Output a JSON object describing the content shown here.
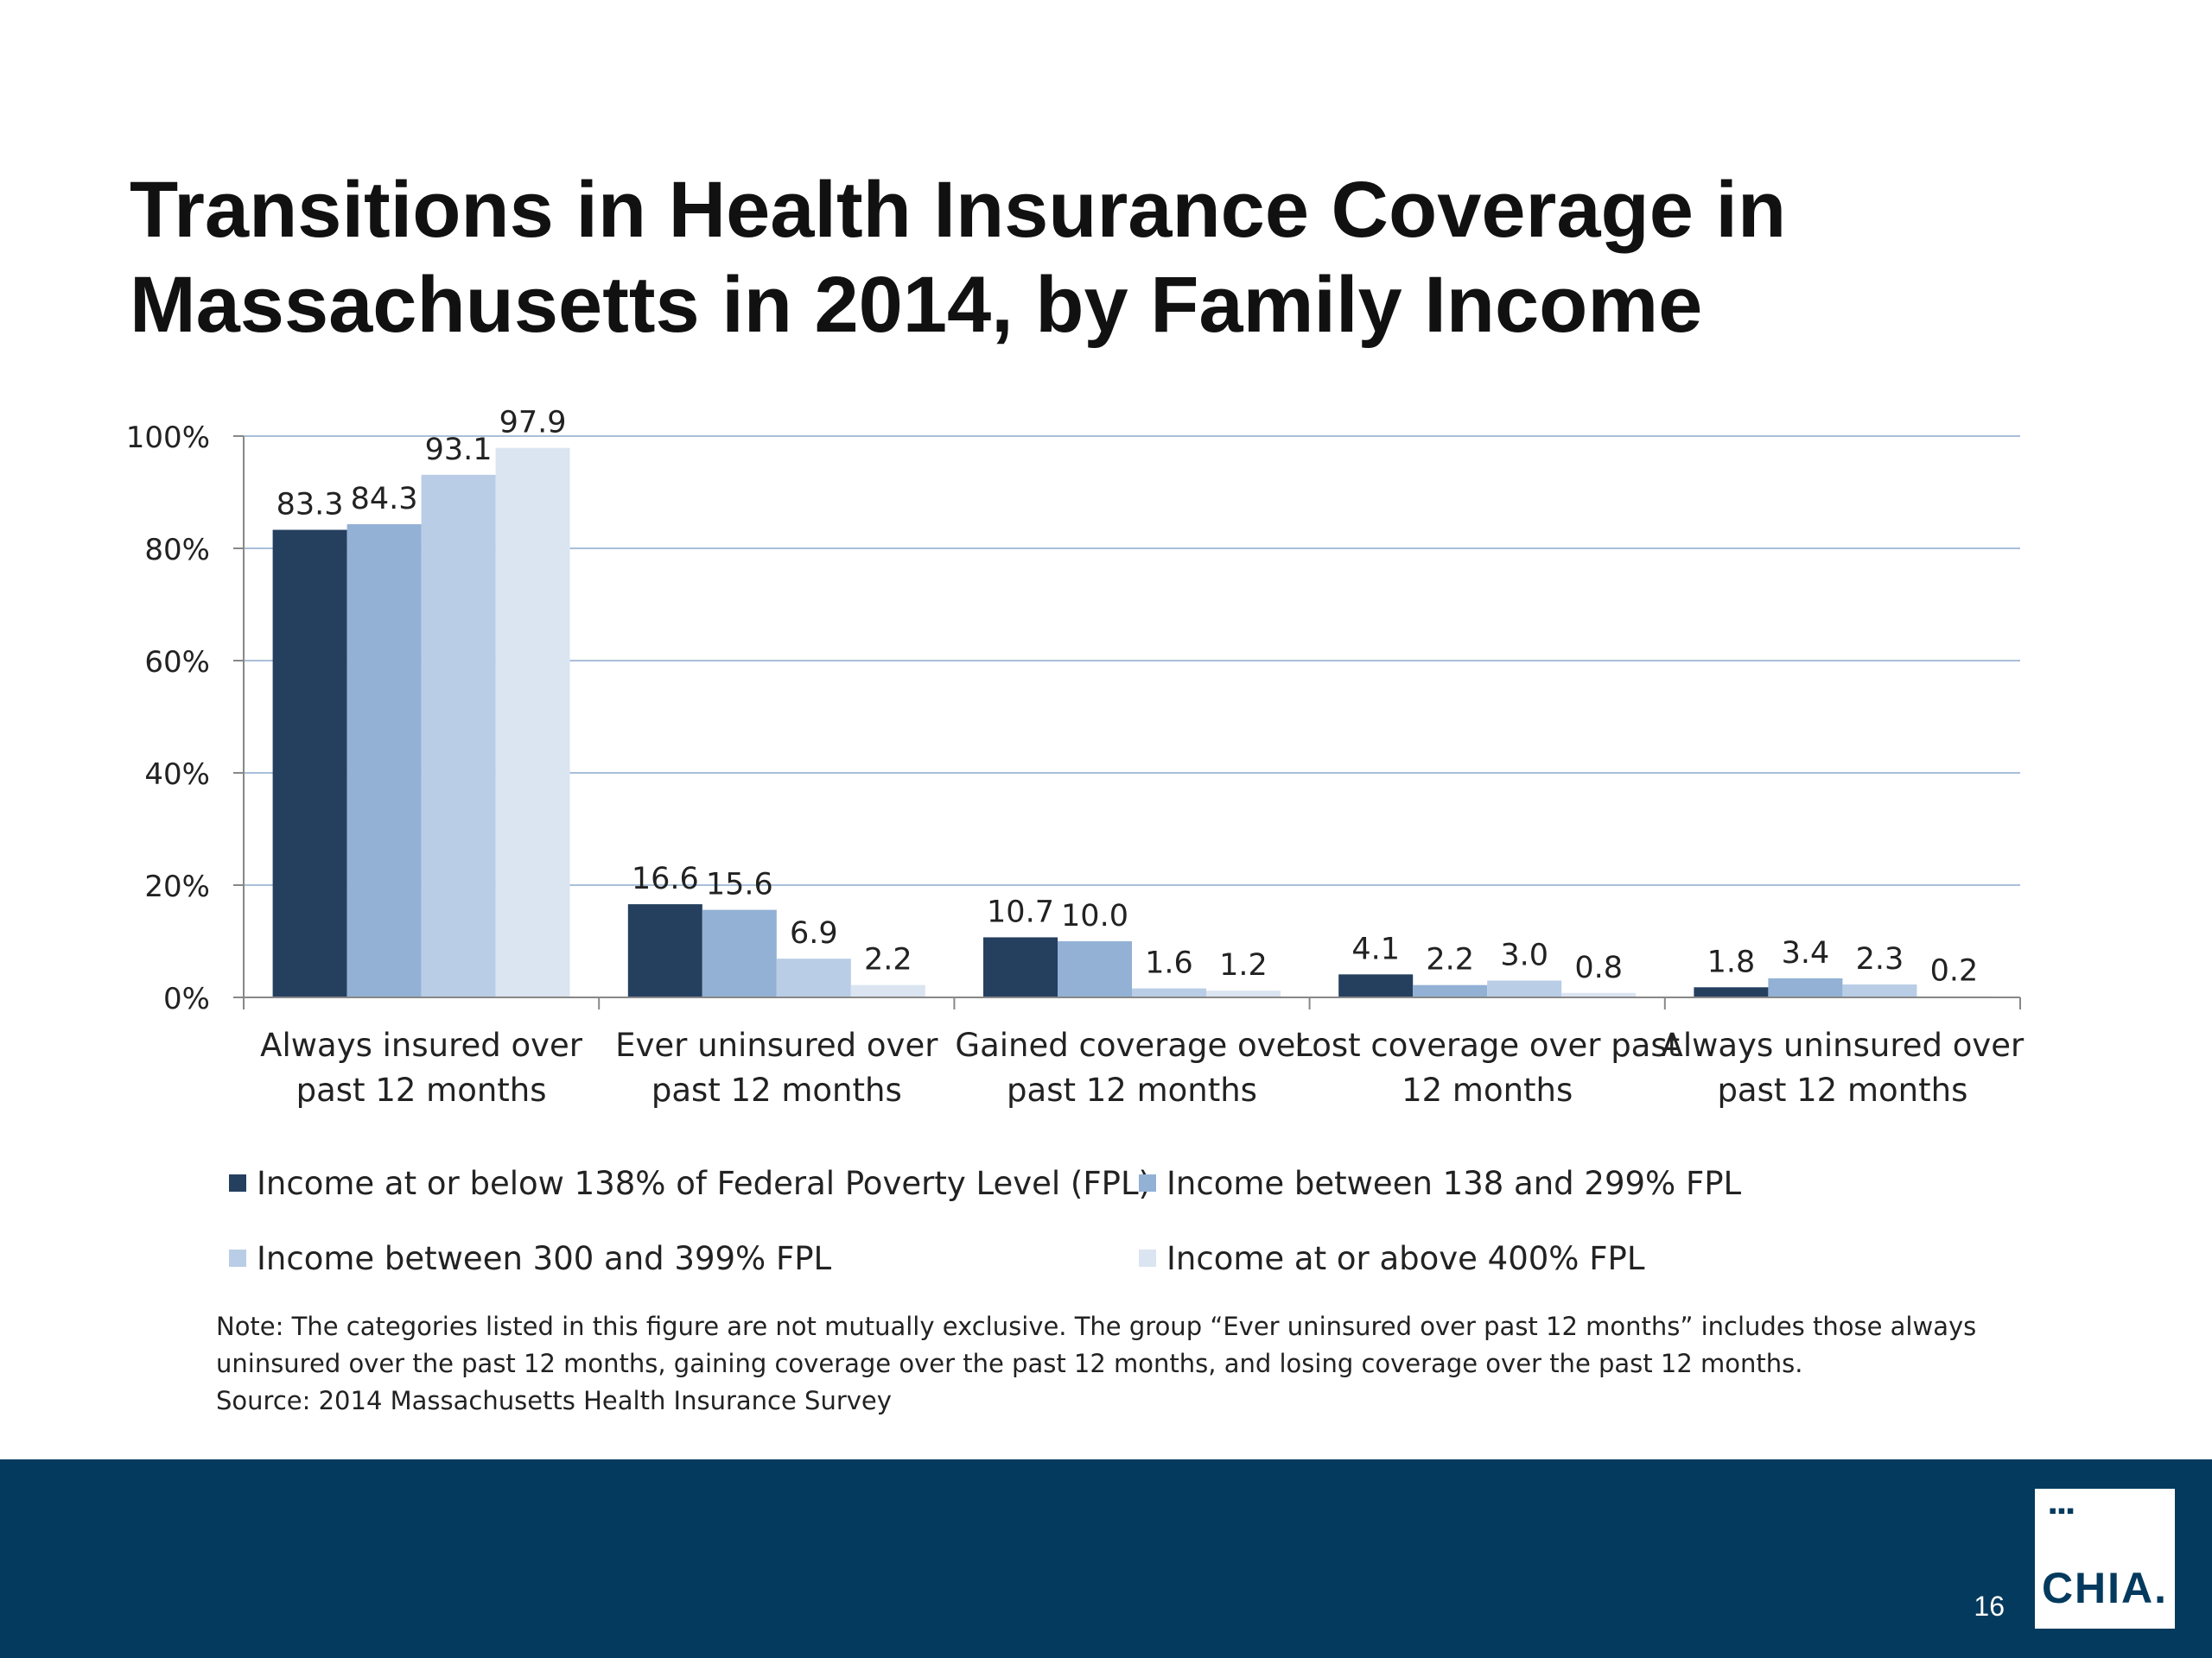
{
  "slide": {
    "title": "Transitions in Health Insurance Coverage in Massachusetts in 2014, by Family Income",
    "note_line1": "Note: The categories listed in this figure are not mutually exclusive. The group “Ever uninsured over past 12 months” includes those always uninsured over the past 12 months, gaining coverage over the past 12 months, and losing coverage over the past 12 months.",
    "source": "Source:  2014 Massachusetts Health Insurance Survey",
    "page_number": "16",
    "logo_dots": "▪▪▪",
    "logo_text": "CHIA."
  },
  "colors": {
    "series": [
      "#253f5f",
      "#93b1d5",
      "#b9cde6",
      "#dbe5f1"
    ],
    "gridline": "#a8bfd9",
    "footer": "#033a5d"
  },
  "chart_data": {
    "type": "bar",
    "title": "",
    "xlabel": "",
    "ylabel": "",
    "ylim": [
      0,
      100
    ],
    "y_ticks": [
      0,
      20,
      40,
      60,
      80,
      100
    ],
    "y_tick_labels": [
      "0%",
      "20%",
      "40%",
      "60%",
      "80%",
      "100%"
    ],
    "grid": true,
    "legend_position": "bottom",
    "categories": [
      [
        "Always insured over",
        "past 12 months"
      ],
      [
        "Ever uninsured over",
        "past 12 months"
      ],
      [
        "Gained coverage over",
        "past 12 months"
      ],
      [
        "Lost coverage over past",
        "12 months"
      ],
      [
        "Always uninsured over",
        "past 12 months"
      ]
    ],
    "series": [
      {
        "name": "Income at or below 138% of Federal Poverty Level (FPL)",
        "values": [
          83.3,
          16.6,
          10.7,
          4.1,
          1.8
        ],
        "labels": [
          "83.3",
          "16.6",
          "10.7",
          "4.1",
          "1.8"
        ]
      },
      {
        "name": "Income between 138 and 299% FPL",
        "values": [
          84.3,
          15.6,
          10.0,
          2.2,
          3.4
        ],
        "labels": [
          "84.3",
          "15.6",
          "10.0",
          "2.2",
          "3.4"
        ]
      },
      {
        "name": "Income between 300 and 399% FPL",
        "values": [
          93.1,
          6.9,
          1.6,
          3.0,
          2.3
        ],
        "labels": [
          "93.1",
          "6.9",
          "1.6",
          "3.0",
          "2.3"
        ]
      },
      {
        "name": "Income at or above 400% FPL",
        "values": [
          97.9,
          2.2,
          1.2,
          0.8,
          0.2
        ],
        "labels": [
          "97.9",
          "2.2",
          "1.2",
          "0.8",
          "0.2"
        ]
      }
    ]
  }
}
